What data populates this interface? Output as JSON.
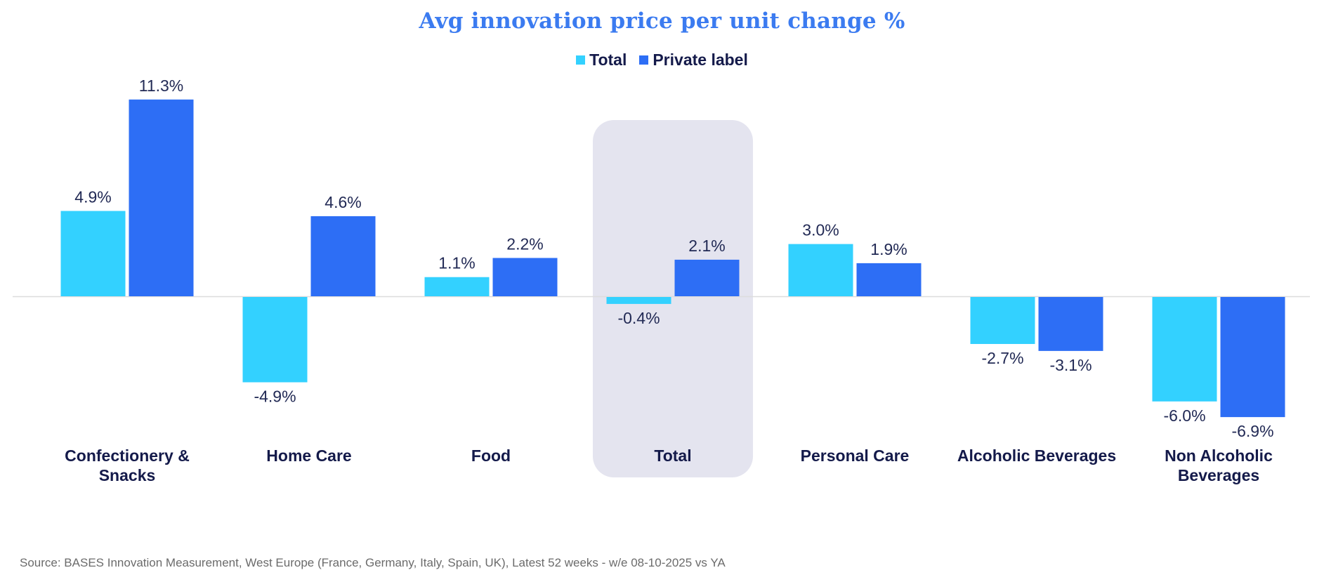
{
  "chart_data": {
    "type": "bar",
    "title": "Avg innovation price per unit change %",
    "xlabel": "",
    "ylabel": "",
    "categories": [
      [
        "Confectionery &",
        "Snacks"
      ],
      [
        "Home Care"
      ],
      [
        "Food"
      ],
      [
        "Total"
      ],
      [
        "Personal Care"
      ],
      [
        "Alcoholic Beverages"
      ],
      [
        "Non Alcoholic",
        "Beverages"
      ]
    ],
    "highlighted_category": "Total",
    "series": [
      {
        "name": "Total",
        "color": "#33d1ff",
        "values": [
          4.9,
          -4.9,
          1.1,
          -0.4,
          3.0,
          -2.7,
          -6.0
        ],
        "labels": [
          "4.9%",
          "-4.9%",
          "1.1%",
          "-0.4%",
          "3.0%",
          "-2.7%",
          "-6.0%"
        ]
      },
      {
        "name": "Private label",
        "color": "#2d6ef5",
        "values": [
          11.3,
          4.6,
          2.2,
          2.1,
          1.9,
          -3.1,
          -6.9
        ],
        "labels": [
          "11.3%",
          "4.6%",
          "2.2%",
          "2.1%",
          "1.9%",
          "-3.1%",
          "-6.9%"
        ]
      }
    ],
    "ylim": [
      -7.5,
      12
    ],
    "grid": false,
    "legend_position": "top-center",
    "zero_line": true
  },
  "legend": {
    "items": [
      {
        "label": "Total",
        "color": "#33d1ff"
      },
      {
        "label": "Private label",
        "color": "#2d6ef5"
      }
    ]
  },
  "colors": {
    "title": "#3b7bf0",
    "highlight_bg": "#e4e4ef",
    "text_dark": "#141a4a",
    "zero_line": "#dddddd"
  },
  "footer": {
    "source": "Source: BASES Innovation Measurement, West Europe (France, Germany, Italy, Spain, UK), Latest 52 weeks - w/e 08-10-2025 vs YA"
  }
}
